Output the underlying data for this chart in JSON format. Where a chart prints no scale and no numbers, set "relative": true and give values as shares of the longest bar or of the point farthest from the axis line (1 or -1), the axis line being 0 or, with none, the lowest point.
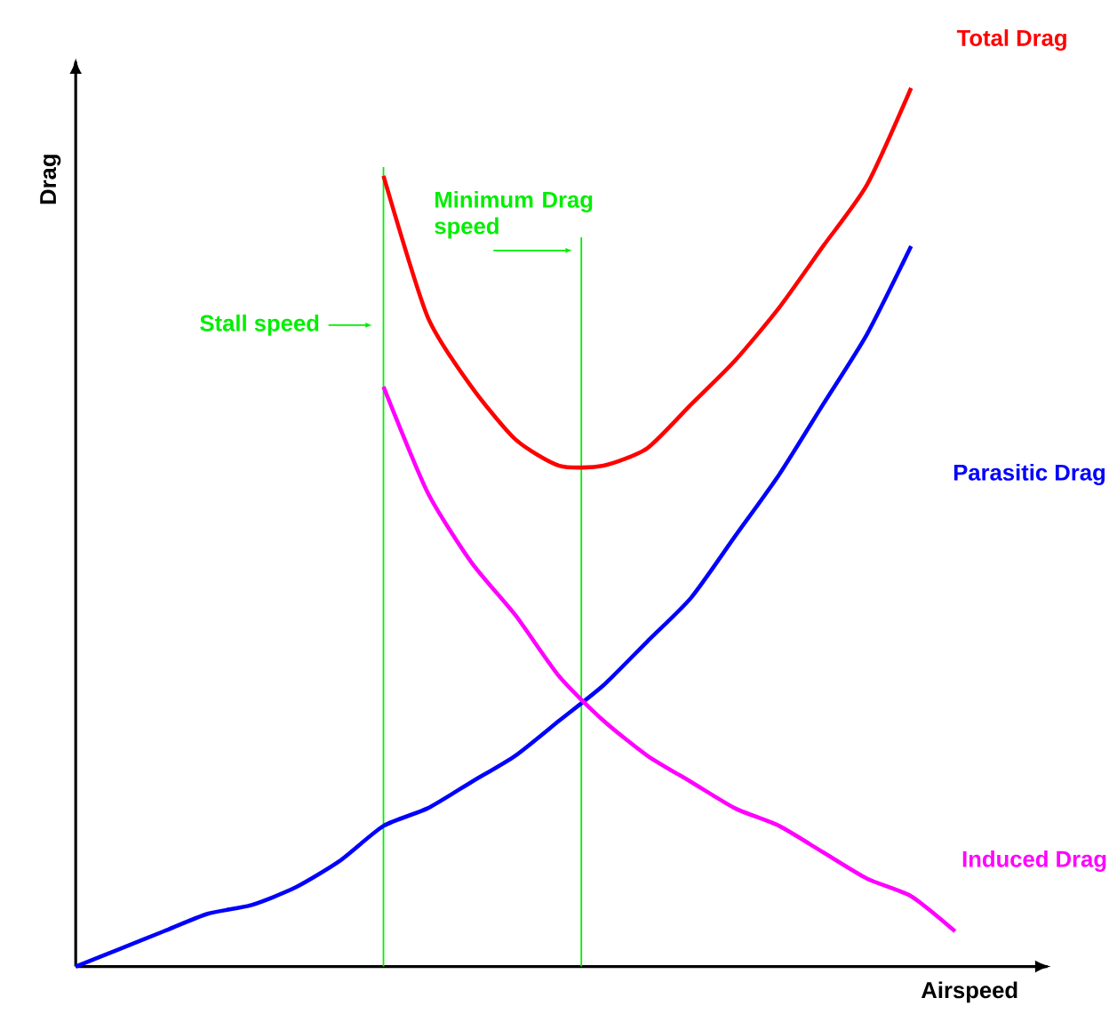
{
  "chart_data": {
    "type": "line",
    "relative": true,
    "xlabel": "Airspeed",
    "ylabel": "Drag",
    "categories": [
      null,
      null,
      null,
      null,
      null,
      null,
      null,
      null,
      null,
      null,
      null,
      null,
      null,
      null,
      null,
      null,
      null,
      null,
      null,
      null,
      null
    ],
    "series": [
      {
        "name": "Total Drag",
        "color": "#ff0000",
        "values": [
          null,
          null,
          null,
          null,
          null,
          null,
          null,
          0.9,
          0.74,
          0.66,
          0.6,
          0.57,
          0.57,
          0.59,
          0.64,
          0.69,
          0.75,
          0.82,
          0.89,
          1.0,
          null
        ]
      },
      {
        "name": "Parasitic Drag",
        "color": "#0000ff",
        "values": [
          0,
          0.02,
          0.04,
          0.06,
          0.07,
          0.09,
          0.12,
          0.16,
          0.18,
          0.21,
          0.24,
          0.28,
          0.32,
          0.37,
          0.42,
          0.49,
          0.56,
          0.64,
          0.72,
          0.82,
          null
        ]
      },
      {
        "name": "Induced Drag",
        "color": "#ff00ff",
        "values": [
          null,
          null,
          null,
          null,
          null,
          null,
          null,
          0.66,
          0.54,
          0.46,
          0.4,
          0.33,
          0.28,
          0.24,
          0.21,
          0.18,
          0.16,
          0.13,
          0.1,
          0.08,
          0.04
        ]
      }
    ],
    "ref_lines": [
      {
        "axis": "x",
        "label": "Stall speed",
        "color": "#00ee00"
      },
      {
        "axis": "x",
        "label": "Minimum Drag speed",
        "color": "#00ee00"
      }
    ]
  }
}
